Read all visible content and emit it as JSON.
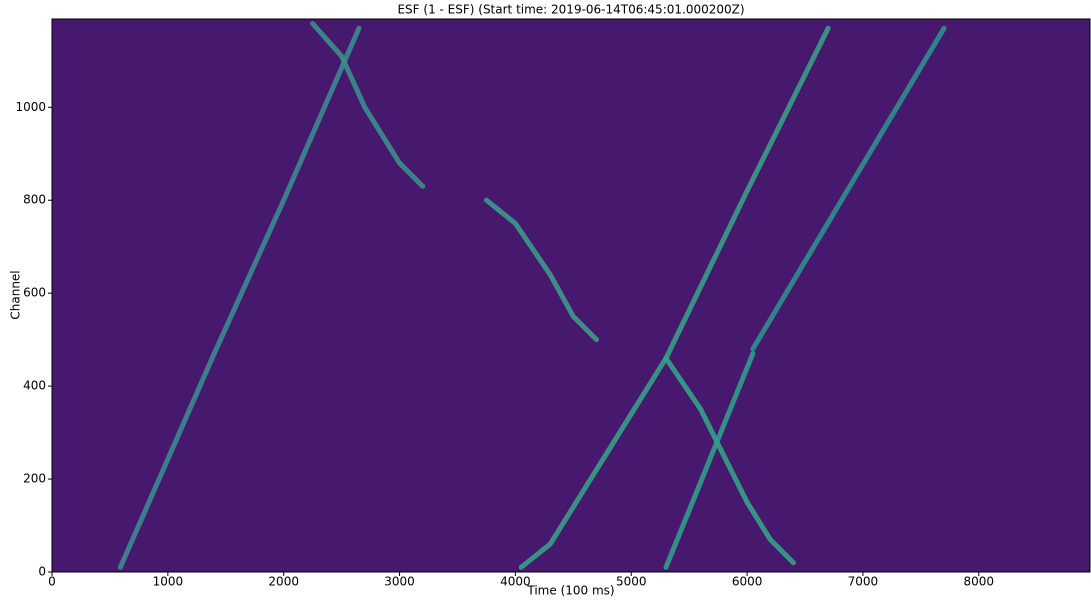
{
  "chart_data": {
    "type": "line",
    "title": "ESF (1 - ESF) (Start time: 2019-06-14T06:45:01.000200Z)",
    "xlabel": "Time (100 ms)",
    "ylabel": "Channel",
    "background": "#46196e",
    "xlim": [
      0,
      8960
    ],
    "ylim": [
      0,
      1190
    ],
    "xticks": [
      0,
      1000,
      2000,
      3000,
      4000,
      5000,
      6000,
      7000,
      8000
    ],
    "yticks": [
      0,
      200,
      400,
      600,
      800,
      1000
    ],
    "series": [
      {
        "color": "#3a8a8f",
        "x": [
          590,
          1400,
          2000,
          2650
        ],
        "values": [
          10,
          470,
          800,
          1170
        ]
      },
      {
        "color": "#3a8f8c",
        "x": [
          2250,
          2500,
          2700,
          3000,
          3200
        ],
        "values": [
          1180,
          1110,
          1000,
          880,
          830
        ]
      },
      {
        "color": "#3c9a8a",
        "x": [
          3750,
          4000,
          4300,
          4500,
          4700
        ],
        "values": [
          800,
          750,
          640,
          550,
          500
        ]
      },
      {
        "color": "#35a085",
        "x": [
          4050,
          4300,
          4600,
          5000,
          5300,
          6000,
          6700
        ],
        "values": [
          10,
          60,
          180,
          340,
          460,
          820,
          1170
        ]
      },
      {
        "color": "#33a386",
        "x": [
          5300,
          5600,
          5800,
          6000,
          6200,
          6400
        ],
        "values": [
          460,
          350,
          250,
          150,
          70,
          20
        ]
      },
      {
        "color": "#2f9e89",
        "x": [
          5300,
          6050
        ],
        "values": [
          10,
          470
        ]
      },
      {
        "color": "#2c8f8c",
        "x": [
          6050,
          7700
        ],
        "values": [
          480,
          1170
        ]
      }
    ]
  }
}
